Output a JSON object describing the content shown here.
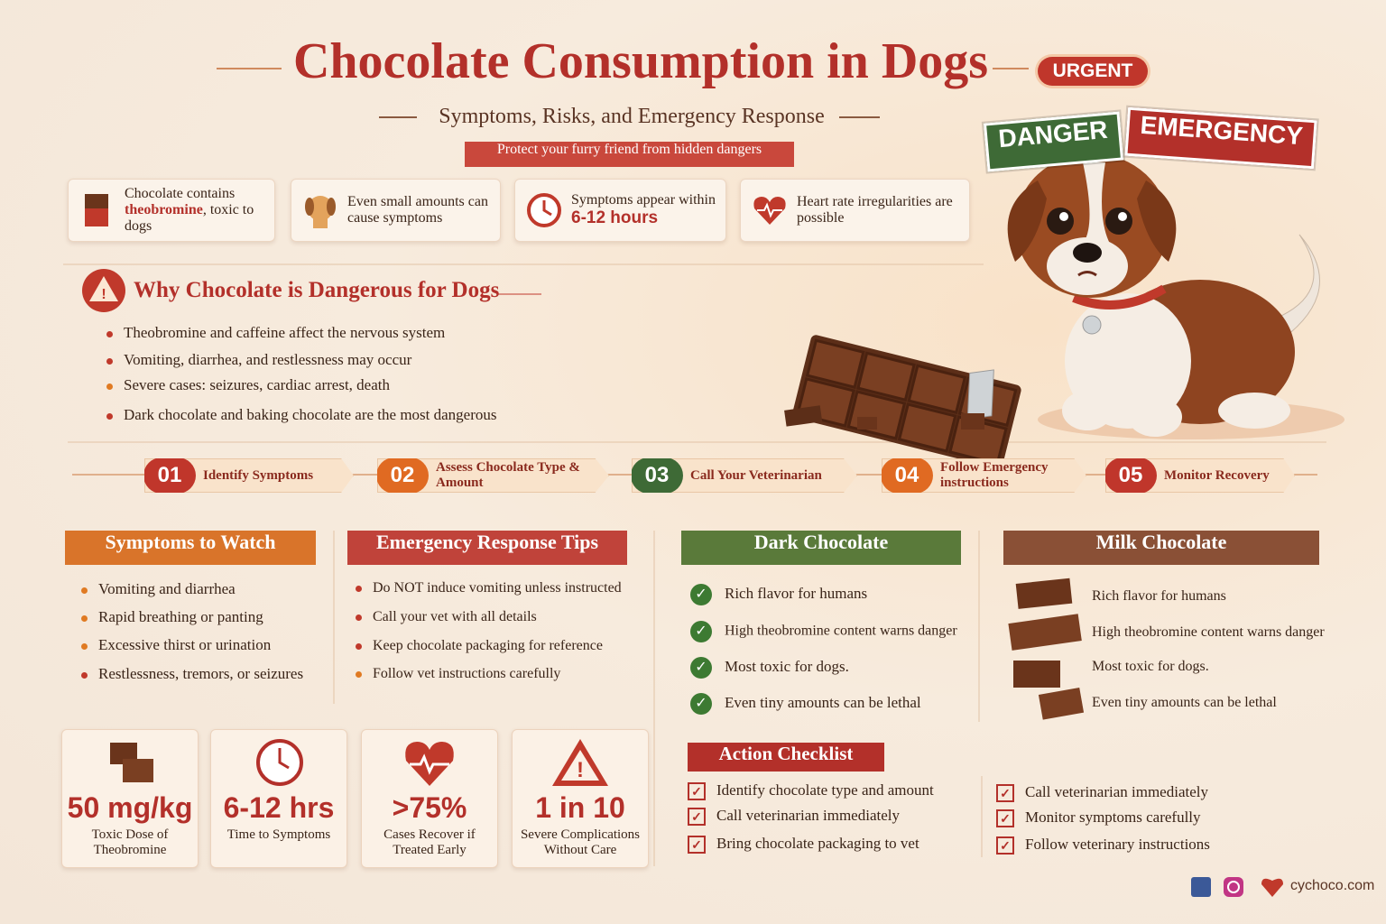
{
  "header": {
    "title": "Chocolate Consumption in Dogs",
    "badge": "URGENT",
    "subtitle": "Symptoms, Risks, and Emergency Response",
    "tagline": "Protect your furry friend from hidden dangers"
  },
  "tags": [
    "DANGER",
    "EMERGENCY"
  ],
  "facts": [
    {
      "lead": "Chocolate contains",
      "strong": "theobromine",
      "tail": ", toxic to dogs"
    },
    {
      "lead": "Even small amounts can cause symptoms"
    },
    {
      "lead": "Symptoms appear within",
      "strong": "6-12 hours"
    },
    {
      "lead": "Heart rate irregularities are possible"
    }
  ],
  "why": {
    "title": "Why Chocolate is Dangerous for Dogs",
    "items": [
      "Theobromine and caffeine affect the nervous system",
      "Vomiting, diarrhea, and restlessness may occur",
      "Severe cases: seizures, cardiac arrest, death",
      "Dark chocolate and baking chocolate are the most dangerous"
    ]
  },
  "steps": [
    {
      "number": "01",
      "label": "Identify Symptoms"
    },
    {
      "number": "02",
      "label": "Assess Chocolate Type & Amount"
    },
    {
      "number": "03",
      "label": "Call Your Veterinarian"
    },
    {
      "number": "04",
      "label": "Follow Emergency instructions"
    },
    {
      "number": "05",
      "label": "Monitor Recovery"
    }
  ],
  "symptoms": {
    "title": "Symptoms to Watch",
    "items": [
      "Vomiting and diarrhea",
      "Rapid breathing or panting",
      "Excessive thirst or urination",
      "Restlessness, tremors, or seizures"
    ]
  },
  "emergency": {
    "title": "Emergency Response Tips",
    "items": [
      "Do NOT induce vomiting unless instructed",
      "Call your vet with all details",
      "Keep chocolate packaging for reference",
      "Follow vet instructions carefully"
    ]
  },
  "dark": {
    "title": "Dark Chocolate",
    "items": [
      "Rich flavor for humans",
      "High theobromine content warns danger",
      "Most toxic for dogs.",
      "Even tiny amounts can be lethal"
    ]
  },
  "milk": {
    "title": "Milk Chocolate",
    "items": [
      "Rich flavor for humans",
      "High theobromine content warns danger",
      "Most toxic for dogs.",
      "Even tiny amounts can be lethal"
    ]
  },
  "stats": [
    {
      "value": "50 mg/kg",
      "label": "Toxic Dose of Theobromine"
    },
    {
      "value": "6-12 hrs",
      "label": "Time to Symptoms"
    },
    {
      "value": ">75%",
      "label": "Cases Recover if Treated Early"
    },
    {
      "value": "1 in 10",
      "label": "Severe Complications Without Care"
    }
  ],
  "checklist": {
    "title": "Action Checklist",
    "left": [
      "Identify chocolate type and amount",
      "Call veterinarian immediately",
      "Bring chocolate packaging to vet"
    ],
    "right": [
      "Call veterinarian immediately",
      "Monitor symptoms carefully",
      "Follow veterinary instructions"
    ]
  },
  "footer": {
    "site": "cychoco.com"
  }
}
